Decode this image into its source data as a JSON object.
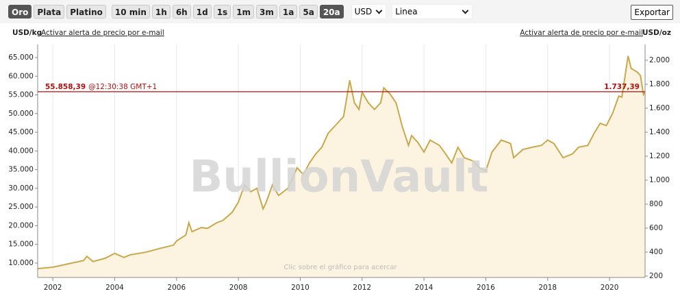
{
  "toolbar": {
    "metals": [
      "Oro",
      "Plata",
      "Platino"
    ],
    "active_metal": 0,
    "ranges": [
      "10 min",
      "1h",
      "6h",
      "1d",
      "1s",
      "1m",
      "3m",
      "1a",
      "5a",
      "20a"
    ],
    "active_range": 9,
    "currency": "USD",
    "chart_style": "Linea",
    "export": "Exportar"
  },
  "header": {
    "left_unit": "USD/kg",
    "left_link": "Activar alerta de precio por e-mail",
    "right_link": "Activar alerta de precio por e-mail",
    "right_unit": "USD/oz"
  },
  "chart_data": {
    "type": "area",
    "watermark": "BullionVault",
    "hint": "Clic sobre el gráfico para acercar",
    "x": [
      2001.5,
      2002,
      2002.5,
      2003,
      2003.1,
      2003.3,
      2003.7,
      2004,
      2004.3,
      2004.5,
      2005,
      2005.5,
      2005.9,
      2006,
      2006.3,
      2006.4,
      2006.5,
      2006.8,
      2007,
      2007.3,
      2007.5,
      2007.8,
      2008,
      2008.2,
      2008.4,
      2008.6,
      2008.8,
      2008.9,
      2009.1,
      2009.3,
      2009.6,
      2009.9,
      2010.1,
      2010.3,
      2010.5,
      2010.7,
      2010.9,
      2011.2,
      2011.4,
      2011.6,
      2011.75,
      2011.9,
      2012,
      2012.2,
      2012.4,
      2012.6,
      2012.7,
      2012.9,
      2013.1,
      2013.3,
      2013.5,
      2013.6,
      2013.8,
      2014,
      2014.2,
      2014.5,
      2014.7,
      2014.9,
      2015.1,
      2015.3,
      2015.6,
      2015.8,
      2016,
      2016.2,
      2016.5,
      2016.8,
      2016.9,
      2017.2,
      2017.5,
      2017.8,
      2018,
      2018.2,
      2018.5,
      2018.8,
      2019,
      2019.3,
      2019.5,
      2019.7,
      2019.9,
      2020.1,
      2020.3,
      2020.4,
      2020.6,
      2020.7,
      2020.9,
      2021,
      2021.1,
      2021.15
    ],
    "values": [
      8500,
      8900,
      9800,
      10700,
      11800,
      10400,
      11300,
      12600,
      11500,
      12200,
      12900,
      14000,
      14800,
      15900,
      17500,
      20800,
      18400,
      19500,
      19300,
      20800,
      21400,
      23600,
      26300,
      30900,
      29100,
      30000,
      24500,
      26300,
      30900,
      28100,
      30000,
      35500,
      33700,
      36800,
      39200,
      41000,
      44700,
      47400,
      49200,
      58900,
      52900,
      51100,
      55700,
      52900,
      51100,
      52900,
      56900,
      55300,
      52900,
      46500,
      41500,
      44100,
      42300,
      39700,
      42900,
      41500,
      39200,
      36800,
      41000,
      38200,
      37300,
      35500,
      34600,
      39700,
      42900,
      42000,
      38200,
      40400,
      41000,
      41500,
      42900,
      42000,
      38200,
      39200,
      41000,
      41500,
      44700,
      47400,
      46800,
      50100,
      54700,
      54400,
      65400,
      62100,
      61100,
      60200,
      55100,
      55858
    ],
    "color": "#c9a84c",
    "fill": "#fdf3e1",
    "xlim": [
      2001.51,
      2021.15
    ],
    "xticks": [
      2002,
      2004,
      2006,
      2008,
      2010,
      2012,
      2014,
      2016,
      2018,
      2020
    ],
    "grid": true,
    "ylim": [
      6150,
      68480
    ],
    "yticks": [
      {
        "value": 10000,
        "label": "10.000"
      },
      {
        "value": 15000,
        "label": "15.000"
      },
      {
        "value": 20000,
        "label": "20.000"
      },
      {
        "value": 25000,
        "label": "25.000"
      },
      {
        "value": 30000,
        "label": "30.000"
      },
      {
        "value": 35000,
        "label": "35.000"
      },
      {
        "value": 40000,
        "label": "40.000"
      },
      {
        "value": 45000,
        "label": "45.000"
      },
      {
        "value": 50000,
        "label": "50.000"
      },
      {
        "value": 55000,
        "label": "55.000"
      },
      {
        "value": 60000,
        "label": "60.000"
      },
      {
        "value": 65000,
        "label": "65.000"
      }
    ],
    "y2lim": [
      188.6,
      2131
    ],
    "y2ticks": [
      200,
      400,
      600,
      800,
      {
        "value": 1000,
        "label": "1.000"
      },
      {
        "value": 1200,
        "label": "1.200"
      },
      {
        "value": 1400,
        "label": "1.400"
      },
      {
        "value": 1600,
        "label": "1.600"
      },
      {
        "value": 1800,
        "label": "1.800"
      },
      {
        "value": 2000,
        "label": "2.000"
      }
    ],
    "price_line": {
      "value": 55858.39,
      "value_label": "55.858,39",
      "time": "@12:30:38 GMT+1",
      "y2_value": 1737.39,
      "y2_value_label": "1.737,39",
      "color": "#b01010"
    }
  }
}
